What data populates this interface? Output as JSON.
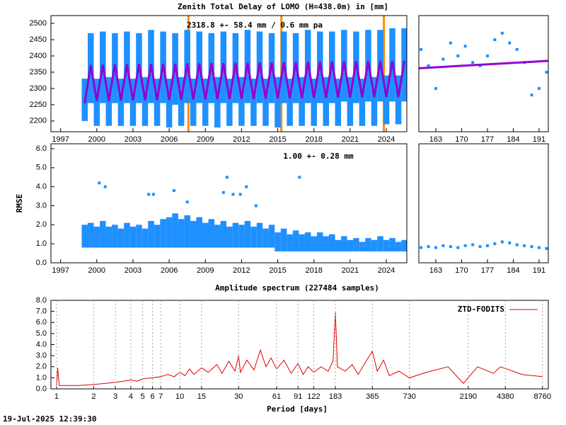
{
  "title": "Zenith Total Delay of LOMO (H=438.0m) in [mm]",
  "timestamp": "19-Jul-2025 12:39:30",
  "chart_data": [
    {
      "type": "range",
      "annotation": "2318.8 +-  58.4 mm /  0.6 mm pa",
      "x": [
        1999,
        1999.5,
        2000,
        2000.5,
        2001,
        2001.5,
        2002,
        2002.5,
        2003,
        2003.5,
        2004,
        2004.5,
        2005,
        2005.5,
        2006,
        2006.5,
        2007,
        2007.5,
        2008,
        2008.5,
        2009,
        2009.5,
        2010,
        2010.5,
        2011,
        2011.5,
        2012,
        2012.5,
        2013,
        2013.5,
        2014,
        2014.5,
        2015,
        2015.5,
        2016,
        2016.5,
        2017,
        2017.5,
        2018,
        2018.5,
        2019,
        2019.5,
        2020,
        2020.5,
        2021,
        2021.5,
        2022,
        2022.5,
        2023,
        2023.5,
        2024,
        2024.5,
        2025,
        2025.5
      ],
      "series": [
        {
          "color": "#1e90ff",
          "low": [
            2200,
            2255,
            2185,
            2255,
            2185,
            2255,
            2185,
            2255,
            2185,
            2255,
            2185,
            2255,
            2185,
            2255,
            2180,
            2250,
            2185,
            2255,
            2185,
            2255,
            2185,
            2255,
            2180,
            2255,
            2185,
            2255,
            2185,
            2255,
            2185,
            2255,
            2185,
            2255,
            2180,
            2255,
            2185,
            2255,
            2185,
            2255,
            2185,
            2255,
            2185,
            2255,
            2185,
            2260,
            2185,
            2255,
            2185,
            2260,
            2185,
            2260,
            2190,
            2260,
            2190,
            2260
          ],
          "high": [
            2330,
            2470,
            2330,
            2475,
            2335,
            2470,
            2330,
            2475,
            2330,
            2470,
            2335,
            2480,
            2330,
            2475,
            2330,
            2470,
            2335,
            2480,
            2330,
            2475,
            2330,
            2470,
            2335,
            2475,
            2330,
            2470,
            2335,
            2480,
            2330,
            2475,
            2330,
            2470,
            2335,
            2475,
            2330,
            2470,
            2335,
            2480,
            2330,
            2475,
            2335,
            2475,
            2330,
            2480,
            2335,
            2475,
            2330,
            2480,
            2335,
            2480,
            2340,
            2485,
            2340,
            2485
          ]
        },
        {
          "color": "#9400d3",
          "values": [
            2255,
            2372,
            2262,
            2373,
            2262,
            2374,
            2263,
            2374,
            2263,
            2375,
            2264,
            2375,
            2264,
            2376,
            2265,
            2376,
            2265,
            2377,
            2266,
            2377,
            2266,
            2378,
            2267,
            2378,
            2267,
            2379,
            2268,
            2379,
            2268,
            2380,
            2269,
            2380,
            2269,
            2381,
            2270,
            2381,
            2270,
            2382,
            2271,
            2382,
            2271,
            2383,
            2272,
            2383,
            2272,
            2384,
            2273,
            2384,
            2273,
            2385,
            2274,
            2385,
            2274,
            2385
          ]
        }
      ],
      "events": {
        "color": "#ff8c00",
        "x": [
          2007.6,
          2015.3,
          2023.8
        ]
      },
      "xlim": [
        1996.2,
        2025.7
      ],
      "xticks": [
        1997,
        2000,
        2003,
        2006,
        2009,
        2012,
        2015,
        2018,
        2021,
        2024
      ],
      "ylim": [
        2167,
        2524
      ],
      "yticks": [
        2200,
        2250,
        2300,
        2350,
        2400,
        2450,
        2500
      ]
    },
    {
      "type": "scatter",
      "series": [
        {
          "color": "#1e90ff",
          "marker": "point",
          "x": [
            159,
            161,
            163,
            165,
            167,
            169,
            171,
            173,
            175,
            177,
            179,
            181,
            183,
            185,
            187,
            189,
            191,
            193
          ],
          "values": [
            2420,
            2370,
            2300,
            2390,
            2440,
            2400,
            2430,
            2380,
            2370,
            2400,
            2450,
            2470,
            2440,
            2420,
            2380,
            2280,
            2300,
            2350
          ]
        },
        {
          "color": "#9400d3",
          "x": [
            158.4,
            193.5
          ],
          "values": [
            2362,
            2385
          ]
        }
      ],
      "xlim": [
        158.4,
        193.5
      ],
      "xticks": [
        163,
        170,
        177,
        184,
        191
      ],
      "ylim": [
        2167,
        2524
      ]
    },
    {
      "type": "range",
      "ylabel": "RMSE",
      "annotation": "1.00 +-  0.28 mm",
      "x": [
        1999,
        1999.5,
        2000,
        2000.5,
        2001,
        2001.5,
        2002,
        2002.5,
        2003,
        2003.5,
        2004,
        2004.5,
        2005,
        2005.5,
        2006,
        2006.5,
        2007,
        2007.5,
        2008,
        2008.5,
        2009,
        2009.5,
        2010,
        2010.5,
        2011,
        2011.5,
        2012,
        2012.5,
        2013,
        2013.5,
        2014,
        2014.5,
        2015,
        2015.5,
        2016,
        2016.5,
        2017,
        2017.5,
        2018,
        2018.5,
        2019,
        2019.5,
        2020,
        2020.5,
        2021,
        2021.5,
        2022,
        2022.5,
        2023,
        2023.5,
        2024,
        2024.5,
        2025,
        2025.5
      ],
      "series": [
        {
          "color": "#1e90ff",
          "low": [
            0.8,
            0.8,
            0.8,
            0.8,
            0.8,
            0.8,
            0.8,
            0.8,
            0.8,
            0.8,
            0.8,
            0.8,
            0.8,
            0.8,
            0.8,
            0.8,
            0.8,
            0.8,
            0.8,
            0.8,
            0.8,
            0.8,
            0.8,
            0.8,
            0.8,
            0.8,
            0.8,
            0.8,
            0.8,
            0.8,
            0.8,
            0.8,
            0.6,
            0.6,
            0.6,
            0.6,
            0.6,
            0.6,
            0.6,
            0.6,
            0.6,
            0.6,
            0.6,
            0.6,
            0.6,
            0.6,
            0.6,
            0.6,
            0.6,
            0.6,
            0.6,
            0.6,
            0.6,
            0.6
          ],
          "high": [
            2.0,
            2.1,
            1.9,
            2.2,
            1.9,
            2.0,
            1.8,
            2.1,
            1.9,
            2.0,
            1.8,
            2.2,
            2.0,
            2.3,
            2.4,
            2.6,
            2.3,
            2.5,
            2.2,
            2.4,
            2.1,
            2.3,
            2.0,
            2.2,
            1.9,
            2.1,
            2.0,
            2.2,
            1.9,
            2.1,
            1.8,
            2.0,
            1.6,
            1.8,
            1.5,
            1.7,
            1.5,
            1.6,
            1.4,
            1.6,
            1.4,
            1.5,
            1.2,
            1.4,
            1.2,
            1.3,
            1.1,
            1.3,
            1.2,
            1.4,
            1.2,
            1.3,
            1.1,
            1.2
          ]
        },
        {
          "color": "#1e90ff",
          "marker": "point",
          "x": [
            2000.2,
            2000.7,
            2004.3,
            2004.7,
            2006.4,
            2007.5,
            2010.5,
            2010.8,
            2011.3,
            2011.9,
            2012.4,
            2013.2,
            2016.8
          ],
          "values": [
            4.2,
            4.0,
            3.6,
            3.6,
            3.8,
            3.2,
            3.7,
            4.5,
            3.6,
            3.6,
            4.0,
            3.0,
            4.5
          ]
        }
      ],
      "xlim": [
        1996.2,
        2025.7
      ],
      "xticks": [
        1997,
        2000,
        2003,
        2006,
        2009,
        2012,
        2015,
        2018,
        2021,
        2024
      ],
      "ylim": [
        0,
        6.26
      ],
      "yticks": [
        {
          "value": 0,
          "label": "0.0"
        },
        {
          "value": 1,
          "label": "1.0"
        },
        {
          "value": 2,
          "label": "2.0"
        },
        {
          "value": 3,
          "label": "3.0"
        },
        {
          "value": 4,
          "label": "4.0"
        },
        {
          "value": 5,
          "label": "5.0"
        },
        {
          "value": 6,
          "label": "6.0"
        }
      ]
    },
    {
      "type": "scatter",
      "series": [
        {
          "color": "#1e90ff",
          "marker": "point",
          "x": [
            159,
            161,
            163,
            165,
            167,
            169,
            171,
            173,
            175,
            177,
            179,
            181,
            183,
            185,
            187,
            189,
            191,
            193
          ],
          "values": [
            0.8,
            0.85,
            0.8,
            0.9,
            0.85,
            0.8,
            0.9,
            0.95,
            0.85,
            0.9,
            1.0,
            1.1,
            1.05,
            0.95,
            0.9,
            0.85,
            0.8,
            0.75
          ]
        }
      ],
      "xlim": [
        158.4,
        193.5
      ],
      "xticks": [
        163,
        170,
        177,
        184,
        191
      ],
      "ylim": [
        0,
        6.26
      ]
    },
    {
      "type": "line",
      "title": "Amplitude spectrum (227484 samples)",
      "xlabel": "Period [days]",
      "log_x": true,
      "grid": true,
      "series": [
        {
          "name": "ZTD-FODITS",
          "color": "#e00000",
          "x": [
            1,
            1.02,
            1.05,
            1.5,
            2,
            2.5,
            3,
            3.5,
            4,
            4.5,
            5,
            6,
            7,
            8,
            9,
            10,
            11,
            12,
            13,
            15,
            17,
            20,
            22,
            25,
            28,
            30,
            31,
            35,
            40,
            45,
            50,
            55,
            61,
            70,
            80,
            91,
            100,
            110,
            122,
            140,
            160,
            175,
            183,
            190,
            220,
            250,
            280,
            320,
            365,
            400,
            450,
            500,
            600,
            730,
            1000,
            1500,
            2000,
            2600,
            3500,
            4000,
            6000,
            8760
          ],
          "values": [
            0.2,
            1.9,
            0.3,
            0.3,
            0.4,
            0.5,
            0.6,
            0.7,
            0.8,
            0.7,
            0.9,
            1.0,
            1.1,
            1.3,
            1.1,
            1.5,
            1.2,
            1.8,
            1.3,
            1.9,
            1.5,
            2.2,
            1.4,
            2.5,
            1.6,
            3.0,
            1.5,
            2.6,
            1.7,
            3.5,
            2.0,
            2.8,
            1.8,
            2.6,
            1.4,
            2.3,
            1.3,
            2.0,
            1.5,
            2.0,
            1.6,
            2.5,
            6.9,
            2.0,
            1.6,
            2.2,
            1.3,
            2.4,
            3.4,
            1.6,
            2.6,
            1.2,
            1.6,
            1.0,
            1.5,
            2.0,
            0.5,
            2.0,
            1.4,
            2.0,
            1.3,
            1.1
          ]
        }
      ],
      "legend": "upper right",
      "xlim": [
        0.9,
        9770
      ],
      "xticks": [
        1,
        2,
        3,
        4,
        5,
        6,
        7,
        10,
        15,
        30,
        61,
        91,
        122,
        183,
        365,
        730,
        2190,
        4380,
        8760
      ],
      "ylim": [
        0,
        8
      ],
      "yticks": [
        {
          "value": 0,
          "label": "0.0"
        },
        {
          "value": 1,
          "label": "1.0"
        },
        {
          "value": 2,
          "label": "2.0"
        },
        {
          "value": 3,
          "label": "3.0"
        },
        {
          "value": 4,
          "label": "4.0"
        },
        {
          "value": 5,
          "label": "5.0"
        },
        {
          "value": 6,
          "label": "6.0"
        },
        {
          "value": 7,
          "label": "7.0"
        },
        {
          "value": 8,
          "label": "8.0"
        }
      ]
    }
  ]
}
